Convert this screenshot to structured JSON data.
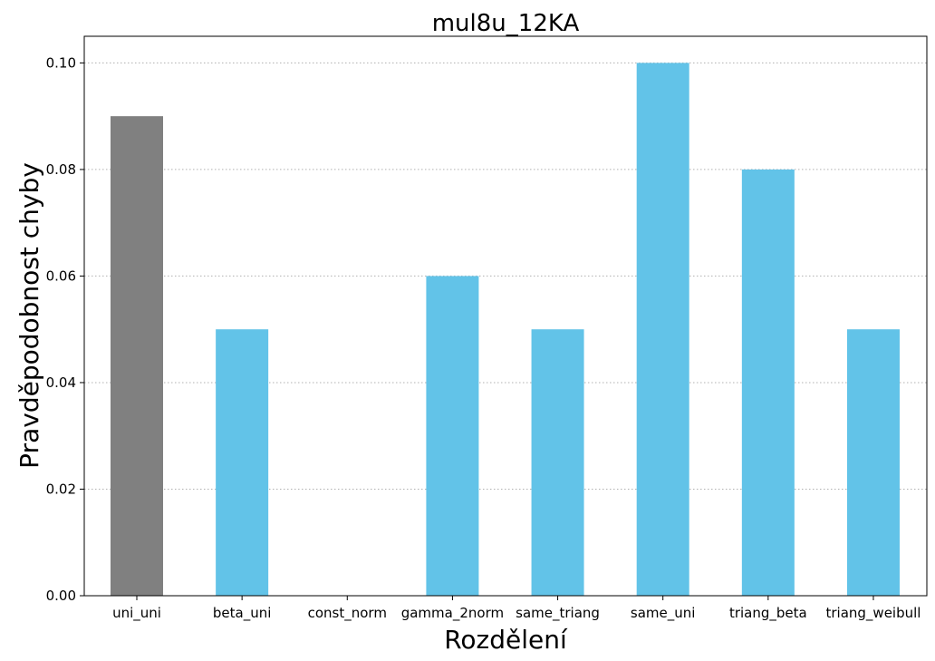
{
  "chart_data": {
    "type": "bar",
    "title": "mul8u_12KA",
    "xlabel": "Rozdělení",
    "ylabel": "Pravděpodobnost chyby",
    "categories": [
      "uni_uni",
      "beta_uni",
      "const_norm",
      "gamma_2norm",
      "same_triang",
      "same_uni",
      "triang_beta",
      "triang_weibull"
    ],
    "values": [
      0.09,
      0.05,
      0.0,
      0.06,
      0.05,
      0.1,
      0.08,
      0.05
    ],
    "bar_colors": [
      "#808080",
      "#62c3e8",
      "#62c3e8",
      "#62c3e8",
      "#62c3e8",
      "#62c3e8",
      "#62c3e8",
      "#62c3e8"
    ],
    "ylim": [
      0,
      0.105
    ],
    "yticks": [
      0.0,
      0.02,
      0.04,
      0.06,
      0.08,
      0.1
    ],
    "ytick_labels": [
      "0.00",
      "0.02",
      "0.04",
      "0.06",
      "0.08",
      "0.10"
    ],
    "grid": "y-dotted",
    "legend": "none"
  }
}
